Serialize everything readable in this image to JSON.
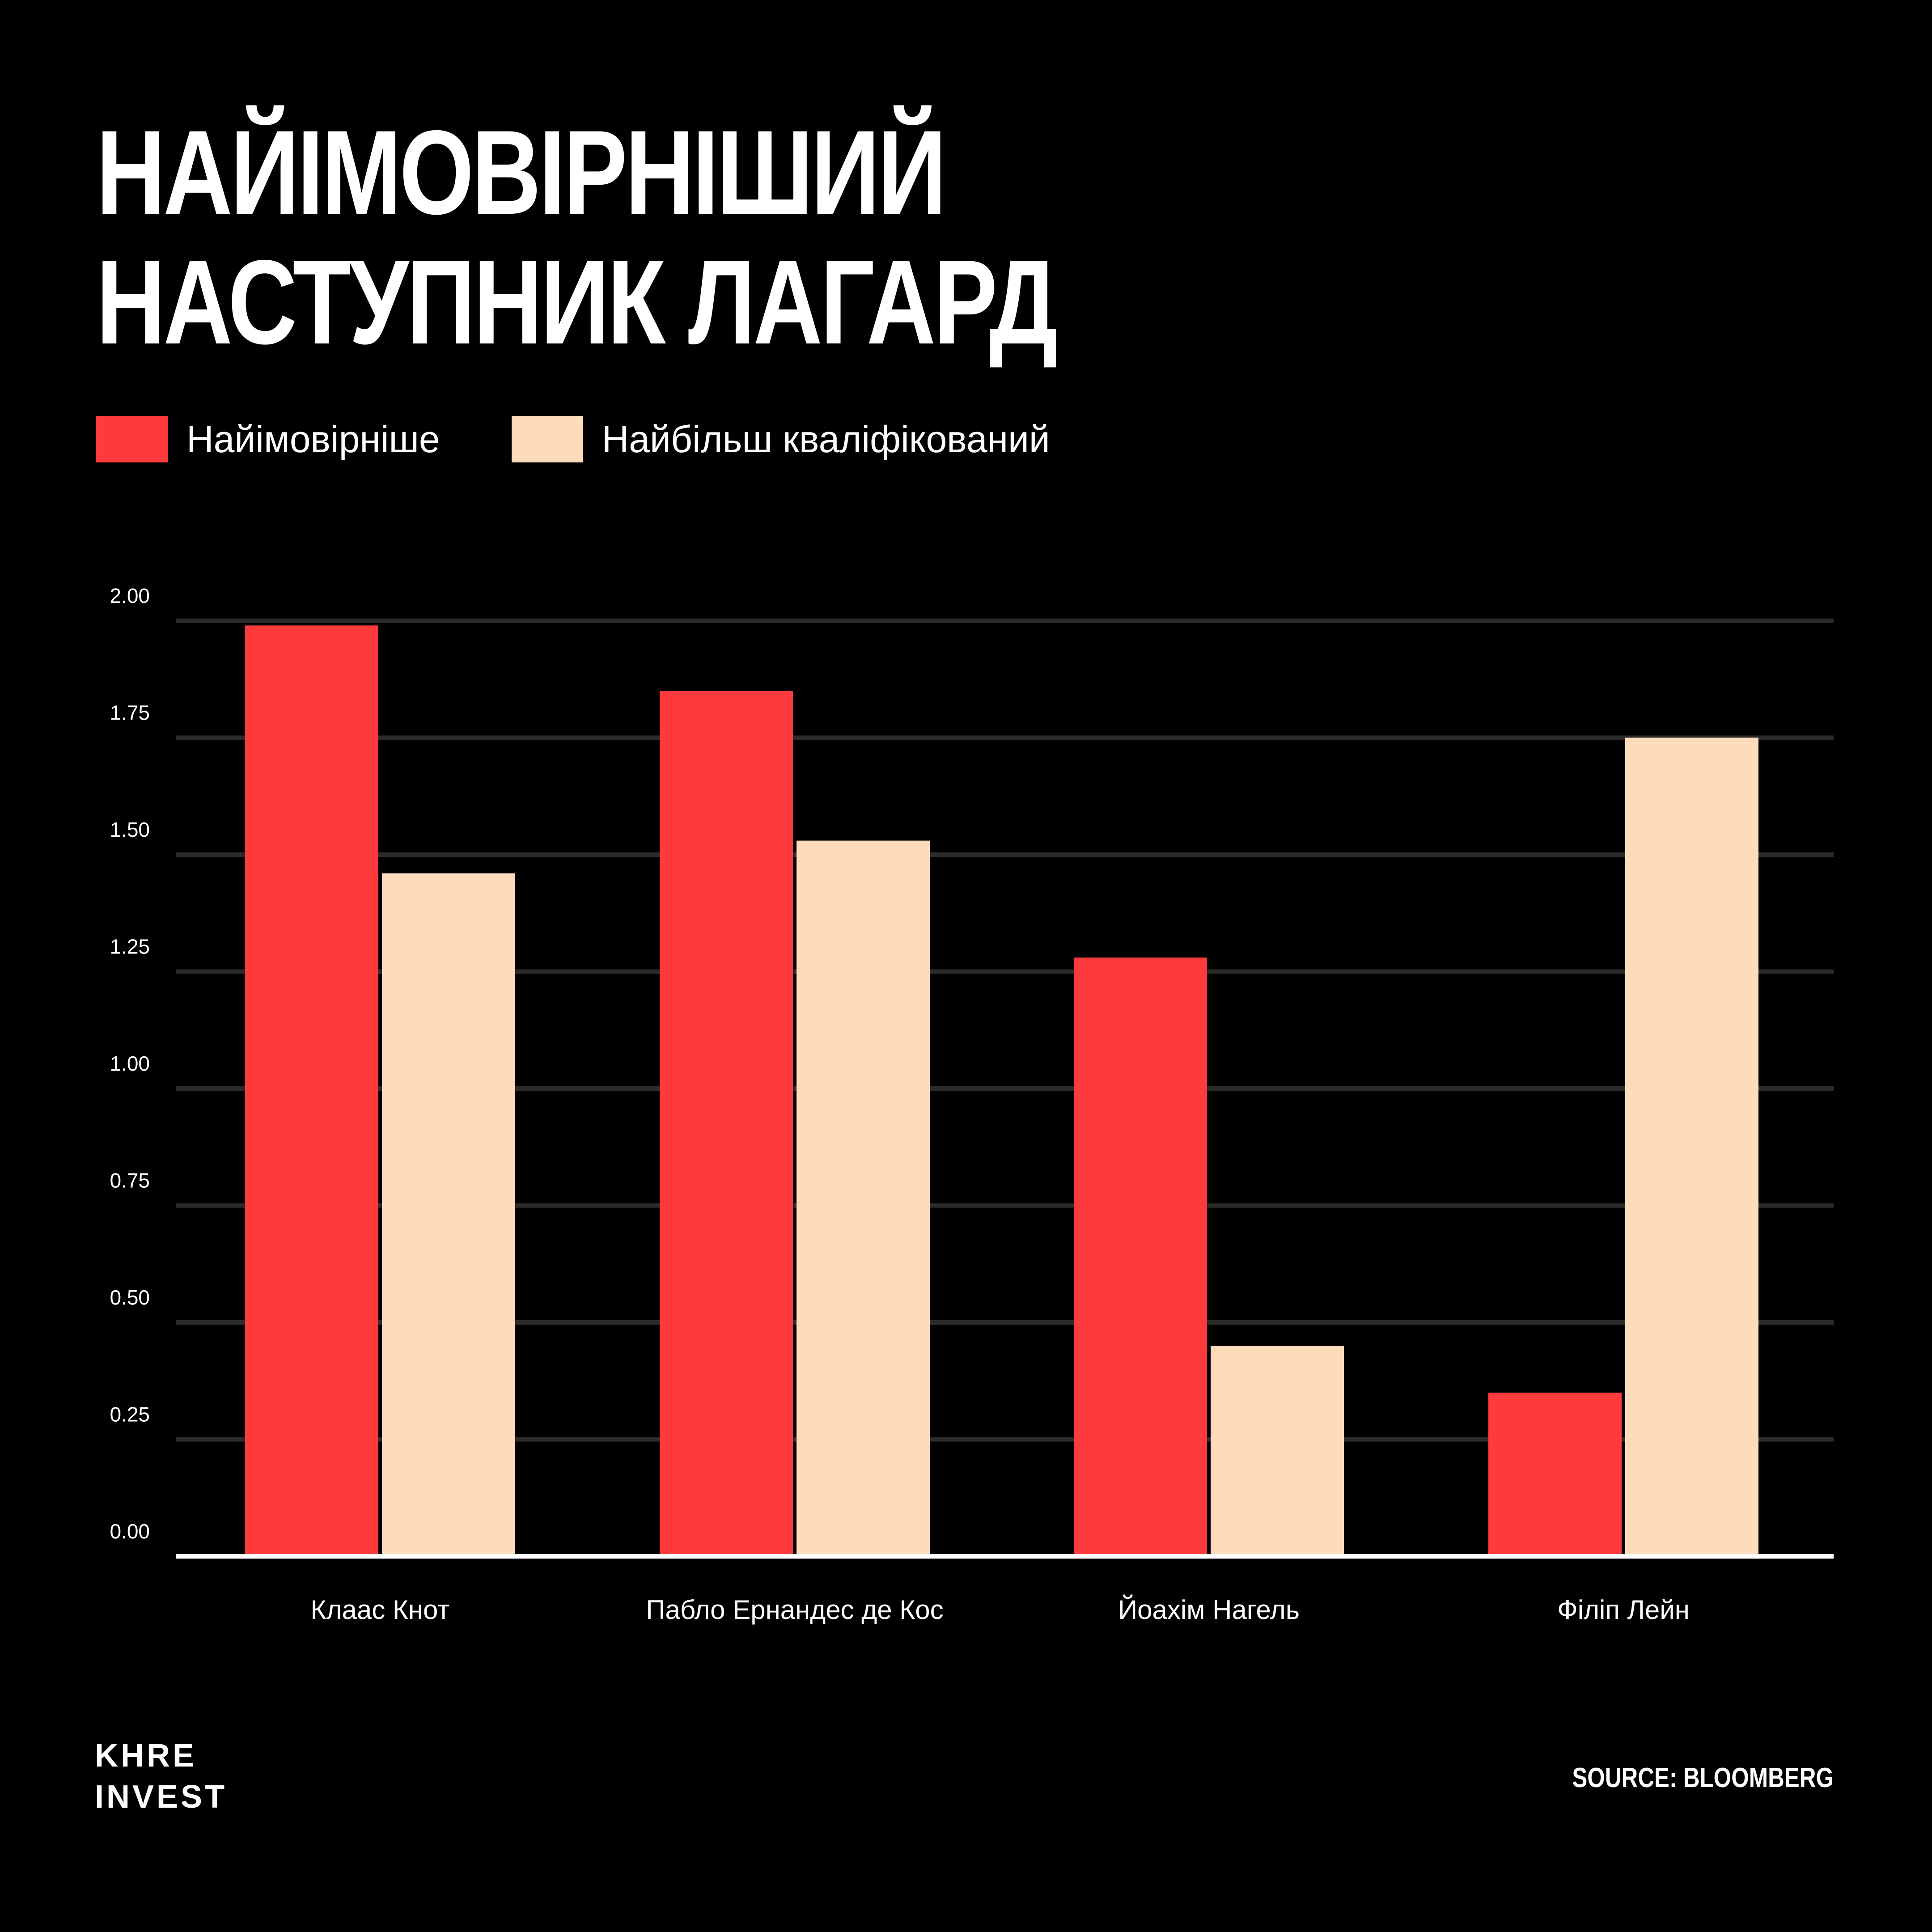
{
  "title_lines": [
    "НАЙІМОВІРНІШИЙ",
    "НАСТУПНИК ЛАГАРД"
  ],
  "legend": [
    {
      "label": "Найімовірніше",
      "color": "#FF3A3D"
    },
    {
      "label": "Найбільш кваліфікований",
      "color": "#FDDBBB"
    }
  ],
  "chart_data": {
    "type": "bar",
    "categories": [
      "Клаас Кнот",
      "Пабло Ернандес де Кос",
      "Йоахім Нагель",
      "Філіп Лейн"
    ],
    "series": [
      {
        "name": "Найімовірніше",
        "values": [
          1.99,
          1.85,
          1.28,
          0.35
        ],
        "color": "#FF3A3D"
      },
      {
        "name": "Найбільш кваліфікований",
        "values": [
          1.46,
          1.53,
          0.45,
          1.75
        ],
        "color": "#FDDBBB"
      }
    ],
    "ylim": [
      0,
      2
    ],
    "yticks": [
      "0.00",
      "0.25",
      "0.50",
      "0.75",
      "1.00",
      "1.25",
      "1.50",
      "1.75",
      "2.00"
    ],
    "grid": true,
    "legend_position": "top-left",
    "xlabel": "",
    "ylabel": ""
  },
  "brand_lines": [
    "KHRE",
    "INVEST"
  ],
  "source": "SOURCE: BLOOMBERG"
}
